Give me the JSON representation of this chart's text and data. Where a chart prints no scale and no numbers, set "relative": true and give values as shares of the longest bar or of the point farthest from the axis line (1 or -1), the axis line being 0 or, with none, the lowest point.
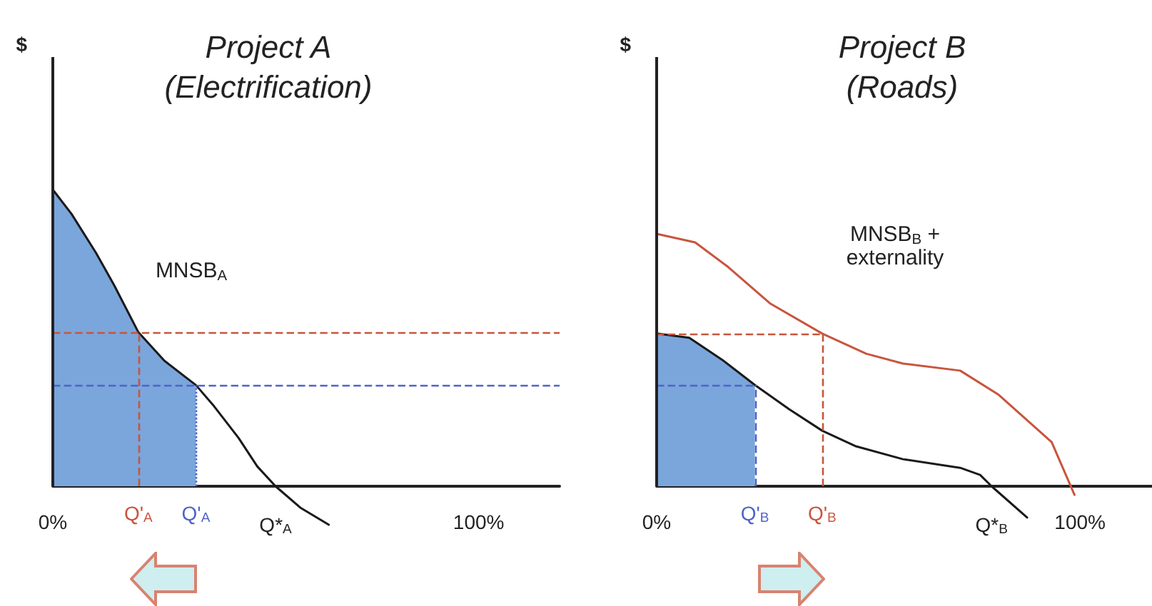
{
  "chart_data": [
    {
      "type": "line",
      "title": "Project A\n(Electrification)",
      "ylabel": "$",
      "relative": true,
      "tick_labels": "x",
      "marker": "none",
      "line_style": "solid",
      "xlim": [
        0,
        119
      ],
      "xticks": [
        {
          "value": 0,
          "label": "0%"
        },
        {
          "value": 52.3,
          "label": "Q*$_{A}$"
        },
        {
          "value": 100,
          "label": "100%"
        }
      ],
      "series": [
        {
          "type": "area",
          "color": "#7aa6dc",
          "x": [
            0,
            4.4,
            10.1,
            14.4,
            20.1,
            26.2,
            33.6
          ],
          "values": [
            1,
            0.918,
            0.788,
            0.678,
            0.519,
            0.423,
            0.341
          ]
        },
        {
          "color": "#1a1a1a",
          "x": [
            0,
            4.4,
            10.1,
            14.4,
            20.1,
            26.2,
            33.6,
            37.9,
            43.6,
            48.0,
            52.3,
            58.1,
            64.8
          ],
          "values": [
            1,
            0.918,
            0.788,
            0.678,
            0.519,
            0.423,
            0.341,
            0.269,
            0.163,
            0.067,
            0,
            -0.072,
            -0.13
          ]
        }
      ],
      "ref_lines": [
        {
          "axis": "y",
          "value": 0.519,
          "color": "#c8553d",
          "line_style": "dashed"
        },
        {
          "axis": "y",
          "value": 0.341,
          "color": "#4f63c9",
          "line_style": "dashed"
        },
        {
          "axis": "x",
          "value": 20.1,
          "label": "Q'$_{A}$",
          "color": "#c8553d",
          "line_style": "dashed"
        },
        {
          "axis": "x",
          "value": 33.6,
          "label": "Q'$_{A}$",
          "color": "#4f63c9",
          "line_style": "dotted"
        }
      ],
      "annotations": [
        "MNSB$_{A}$"
      ]
    },
    {
      "type": "line",
      "title": "Project B\n(Roads)",
      "ylabel": "$",
      "relative": true,
      "tick_labels": "x",
      "marker": "none",
      "line_style": "solid",
      "xlim": [
        0,
        117
      ],
      "xticks": [
        {
          "value": 0,
          "label": "0%"
        },
        {
          "value": 79.1,
          "label": "Q*$_{B}$"
        },
        {
          "value": 100,
          "label": "100%"
        }
      ],
      "series": [
        {
          "type": "area",
          "color": "#7aa6dc",
          "x": [
            0,
            7.7,
            15.8,
            23.2
          ],
          "values": [
            0.605,
            0.588,
            0.497,
            0.401
          ]
        },
        {
          "color": "#1a1a1a",
          "x": [
            0,
            7.7,
            15.8,
            23.2,
            31.3,
            39.1,
            47.1,
            58.2,
            71.7,
            76.4,
            79.1,
            87.5
          ],
          "values": [
            0.605,
            0.588,
            0.497,
            0.401,
            0.305,
            0.22,
            0.158,
            0.107,
            0.073,
            0.045,
            0,
            -0.124
          ]
        },
        {
          "color": "#c8553d",
          "x": [
            0,
            9.1,
            16.8,
            26.9,
            39.1,
            49.5,
            58.2,
            71.7,
            80.8,
            93.3,
            98.7
          ],
          "values": [
            1,
            0.966,
            0.87,
            0.723,
            0.605,
            0.525,
            0.486,
            0.458,
            0.362,
            0.175,
            -0.034
          ]
        }
      ],
      "ref_lines": [
        {
          "axis": "y",
          "value": 0.605,
          "color": "#c8553d",
          "line_style": "dashed"
        },
        {
          "axis": "y",
          "value": 0.401,
          "color": "#4f63c9",
          "line_style": "dashed"
        },
        {
          "axis": "x",
          "value": 23.2,
          "label": "Q'$_{B}$",
          "color": "#4f63c9",
          "line_style": "dashed"
        },
        {
          "axis": "x",
          "value": 39.1,
          "label": "Q'$_{B}$",
          "color": "#c8553d",
          "line_style": "dashed"
        }
      ],
      "annotations": [
        "MNSB$_{B}$ +\nexternality"
      ]
    }
  ]
}
